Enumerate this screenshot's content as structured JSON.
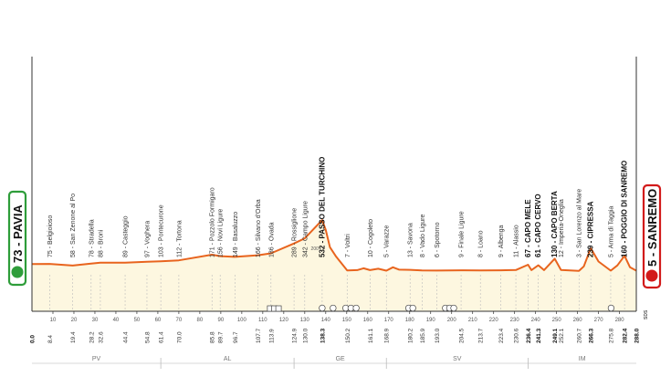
{
  "start": {
    "label": "73 - PAVIA",
    "color": "#2e9d3a"
  },
  "finish": {
    "label": "5 - SANREMO",
    "color": "#d21a1a"
  },
  "logo": "SDS",
  "colors": {
    "profile_line": "#e8641e",
    "profile_fill": "#fdf7e0",
    "axis": "#333333",
    "dashed": "#bbbbbb"
  },
  "chart_data": {
    "type": "area",
    "xlim": [
      0,
      288
    ],
    "x_ticks": [
      10,
      20,
      30,
      40,
      50,
      60,
      70,
      80,
      90,
      100,
      110,
      120,
      130,
      140,
      150,
      160,
      170,
      180,
      190,
      200,
      210,
      220,
      230,
      240,
      250,
      260,
      270,
      280
    ],
    "ylim": [
      0,
      800
    ],
    "altitude_mark": {
      "value": 200,
      "label": "200"
    },
    "profile": [
      [
        0,
        73
      ],
      [
        8.4,
        75
      ],
      [
        19.4,
        58
      ],
      [
        28.2,
        78
      ],
      [
        32.6,
        88
      ],
      [
        44.4,
        89
      ],
      [
        54.8,
        97
      ],
      [
        61.4,
        103
      ],
      [
        70,
        112
      ],
      [
        85.8,
        171
      ],
      [
        89.7,
        156
      ],
      [
        96.7,
        149
      ],
      [
        107.7,
        166
      ],
      [
        113.9,
        186
      ],
      [
        124.9,
        289
      ],
      [
        130,
        342
      ],
      [
        138.3,
        532
      ],
      [
        140,
        430
      ],
      [
        142,
        250
      ],
      [
        145,
        150
      ],
      [
        150.2,
        7
      ],
      [
        155,
        10
      ],
      [
        158,
        30
      ],
      [
        161.1,
        10
      ],
      [
        165,
        25
      ],
      [
        168.9,
        5
      ],
      [
        172,
        40
      ],
      [
        175,
        15
      ],
      [
        180.2,
        13
      ],
      [
        185.9,
        8
      ],
      [
        193,
        6
      ],
      [
        204.5,
        9
      ],
      [
        213.7,
        8
      ],
      [
        223.4,
        9
      ],
      [
        230.6,
        11
      ],
      [
        236.4,
        67
      ],
      [
        238,
        10
      ],
      [
        241.3,
        61
      ],
      [
        244,
        10
      ],
      [
        249.1,
        130
      ],
      [
        252.1,
        12
      ],
      [
        260.7,
        3
      ],
      [
        263,
        50
      ],
      [
        266.3,
        239
      ],
      [
        270,
        100
      ],
      [
        275.8,
        5
      ],
      [
        279,
        60
      ],
      [
        282.4,
        160
      ],
      [
        285,
        40
      ],
      [
        288,
        5
      ]
    ],
    "waypoints": [
      {
        "km": "8.4",
        "label": "75 - Belgioioso",
        "bold": false
      },
      {
        "km": "19.4",
        "label": "58 - San Zenone al Po",
        "bold": false
      },
      {
        "km": "28.2",
        "label": "78 - Stradella",
        "bold": false
      },
      {
        "km": "32.6",
        "label": "88 - Broni",
        "bold": false
      },
      {
        "km": "44.4",
        "label": "89 - Casteggio",
        "bold": false
      },
      {
        "km": "54.8",
        "label": "97 - Voghera",
        "bold": false
      },
      {
        "km": "61.4",
        "label": "103 - Pontecurone",
        "bold": false
      },
      {
        "km": "70.0",
        "label": "112 - Tortona",
        "bold": false
      },
      {
        "km": "85.8",
        "label": "171 - Pozzolo Formigaro",
        "bold": false
      },
      {
        "km": "89.7",
        "label": "156 - Novi Ligure",
        "bold": false
      },
      {
        "km": "96.7",
        "label": "149 - Basaluzzo",
        "bold": false
      },
      {
        "km": "107.7",
        "label": "166 - Silvano d'Orba",
        "bold": false
      },
      {
        "km": "113.9",
        "label": "186 - Ovada",
        "bold": false
      },
      {
        "km": "124.9",
        "label": "289 - Rossiglione",
        "bold": false
      },
      {
        "km": "130.0",
        "label": "342 - Campo Ligure",
        "bold": false
      },
      {
        "km": "138.3",
        "label": "532 - PASSO DEL TURCHINO",
        "bold": true
      },
      {
        "km": "150.2",
        "label": "7 - Voltri",
        "bold": false
      },
      {
        "km": "161.1",
        "label": "10 - Cogoleto",
        "bold": false
      },
      {
        "km": "168.9",
        "label": "5 - Varazze",
        "bold": false
      },
      {
        "km": "180.2",
        "label": "13 - Savona",
        "bold": false
      },
      {
        "km": "185.9",
        "label": "8 - Vado Ligure",
        "bold": false
      },
      {
        "km": "193.0",
        "label": "6 - Spotorno",
        "bold": false
      },
      {
        "km": "204.5",
        "label": "9 - Finale Ligure",
        "bold": false
      },
      {
        "km": "213.7",
        "label": "8 - Loano",
        "bold": false
      },
      {
        "km": "223.4",
        "label": "9 - Albenga",
        "bold": false
      },
      {
        "km": "230.6",
        "label": "11 - Alassio",
        "bold": false
      },
      {
        "km": "236.4",
        "label": "67 - CAPO MELE",
        "bold": true
      },
      {
        "km": "241.3",
        "label": "61 - CAPO CERVO",
        "bold": true
      },
      {
        "km": "249.1",
        "label": "130 - CAPO BERTA",
        "bold": true
      },
      {
        "km": "252.1",
        "label": "12 - Imperia-Oneglia",
        "bold": false
      },
      {
        "km": "260.7",
        "label": "3 - San Lorenzo al Mare",
        "bold": false
      },
      {
        "km": "266.3",
        "label": "239 - CIPRESSA",
        "bold": true
      },
      {
        "km": "275.8",
        "label": "5 - Arma di Taggia",
        "bold": false
      },
      {
        "km": "282.4",
        "label": "160 - POGGIO DI SANREMO",
        "bold": true
      },
      {
        "km": "288.0",
        "label": "",
        "bold": true
      }
    ],
    "start_distance": "0.0",
    "regions": [
      {
        "name": "PV",
        "from": 0,
        "to": 61.4
      },
      {
        "name": "AL",
        "from": 61.4,
        "to": 124.9
      },
      {
        "name": "GE",
        "from": 124.9,
        "to": 168.9
      },
      {
        "name": "SV",
        "from": 168.9,
        "to": 236.4
      },
      {
        "name": "IM",
        "from": 236.4,
        "to": 288
      }
    ],
    "markers": [
      {
        "km": 113.5,
        "kind": "box"
      },
      {
        "km": 115.5,
        "kind": "box"
      },
      {
        "km": 117.5,
        "kind": "box"
      },
      {
        "km": 138.3,
        "kind": "circle"
      },
      {
        "km": 143.5,
        "kind": "circle"
      },
      {
        "km": 149.5,
        "kind": "circle"
      },
      {
        "km": 152,
        "kind": "circle"
      },
      {
        "km": 154.5,
        "kind": "circle"
      },
      {
        "km": 179.5,
        "kind": "circle"
      },
      {
        "km": 181.5,
        "kind": "circle"
      },
      {
        "km": 197,
        "kind": "circle"
      },
      {
        "km": 199,
        "kind": "circle"
      },
      {
        "km": 201,
        "kind": "circle"
      },
      {
        "km": 276,
        "kind": "circle"
      }
    ]
  }
}
